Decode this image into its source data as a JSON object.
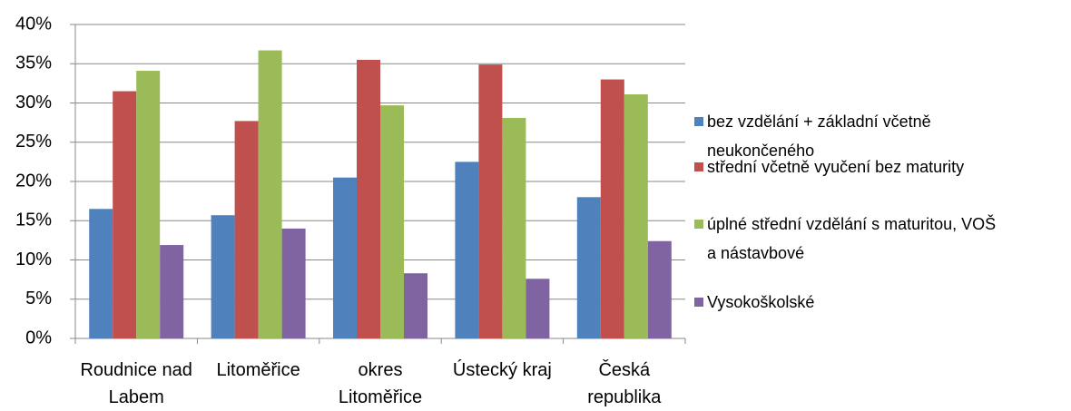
{
  "chart_data": {
    "type": "bar",
    "categories": [
      "Roudnice nad Labem",
      "Litoměřice",
      "okres Litoměřice",
      "Ústecký kraj",
      "Česká republika"
    ],
    "series": [
      {
        "name": "bez vzdělání + základní včetně neukončeného",
        "color": "#4f81bd",
        "values": [
          16.5,
          15.7,
          20.5,
          22.5,
          18.0
        ]
      },
      {
        "name": "střední včetně vyučení  bez maturity",
        "color": "#c0504d",
        "values": [
          31.5,
          27.7,
          35.5,
          34.9,
          33.0
        ]
      },
      {
        "name": "úplné střední vzdělání s maturitou, VOŠ a nástavbové",
        "color": "#9bbb59",
        "values": [
          34.1,
          36.7,
          29.7,
          28.1,
          31.1
        ]
      },
      {
        "name": "Vysokoškolské",
        "color": "#8064a2",
        "values": [
          11.9,
          14.0,
          8.3,
          7.6,
          12.4
        ]
      }
    ],
    "ylim": [
      0,
      40
    ],
    "yticks": [
      {
        "value": 0,
        "label": "0%"
      },
      {
        "value": 5,
        "label": "5%"
      },
      {
        "value": 10,
        "label": "10%"
      },
      {
        "value": 15,
        "label": "15%"
      },
      {
        "value": 20,
        "label": "20%"
      },
      {
        "value": 25,
        "label": "25%"
      },
      {
        "value": 30,
        "label": "30%"
      },
      {
        "value": 35,
        "label": "35%"
      },
      {
        "value": 40,
        "label": "40%"
      }
    ],
    "grid": true,
    "legend": "right"
  }
}
